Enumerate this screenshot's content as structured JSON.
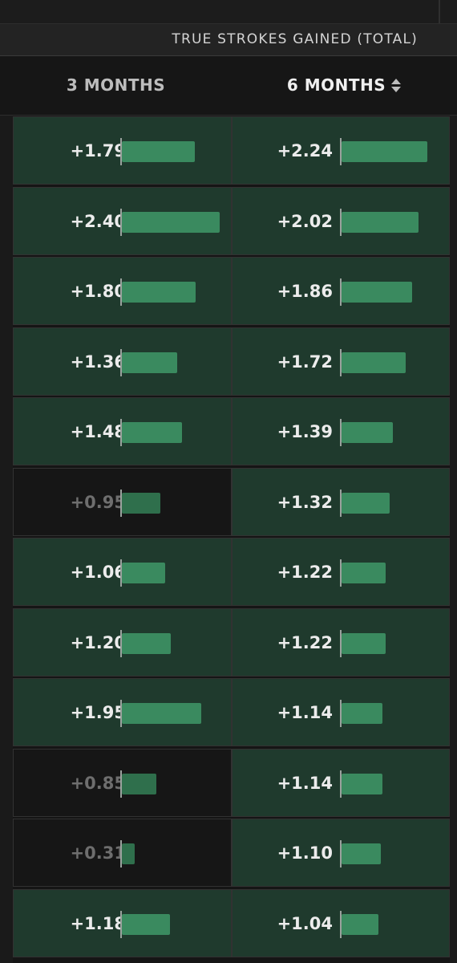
{
  "table": {
    "group_header": "TRUE STROKES GAINED (TOTAL)",
    "columns": [
      {
        "label": "3 MONTHS"
      },
      {
        "label": "6 MONTHS",
        "sorted": true
      }
    ],
    "rows": [
      {
        "m3": {
          "text": "+1.79",
          "value": 1.79
        },
        "m6": {
          "text": "+2.24",
          "value": 2.24
        }
      },
      {
        "m3": {
          "text": "+2.40",
          "value": 2.4
        },
        "m6": {
          "text": "+2.02",
          "value": 2.02
        }
      },
      {
        "m3": {
          "text": "+1.80",
          "value": 1.8
        },
        "m6": {
          "text": "+1.86",
          "value": 1.86
        }
      },
      {
        "m3": {
          "text": "+1.36",
          "value": 1.36
        },
        "m6": {
          "text": "+1.72",
          "value": 1.72
        }
      },
      {
        "m3": {
          "text": "+1.48",
          "value": 1.48
        },
        "m6": {
          "text": "+1.39",
          "value": 1.39
        }
      },
      {
        "m3": {
          "text": "+0.95",
          "value": 0.95
        },
        "m6": {
          "text": "+1.32",
          "value": 1.32
        }
      },
      {
        "m3": {
          "text": "+1.06",
          "value": 1.06
        },
        "m6": {
          "text": "+1.22",
          "value": 1.22
        }
      },
      {
        "m3": {
          "text": "+1.20",
          "value": 1.2
        },
        "m6": {
          "text": "+1.22",
          "value": 1.22
        }
      },
      {
        "m3": {
          "text": "+1.95",
          "value": 1.95
        },
        "m6": {
          "text": "+1.14",
          "value": 1.14
        }
      },
      {
        "m3": {
          "text": "+0.85",
          "value": 0.85
        },
        "m6": {
          "text": "+1.14",
          "value": 1.14
        }
      },
      {
        "m3": {
          "text": "+0.31",
          "value": 0.31
        },
        "m6": {
          "text": "+1.10",
          "value": 1.1
        }
      },
      {
        "m3": {
          "text": "+1.18",
          "value": 1.18
        },
        "m6": {
          "text": "+1.04",
          "value": 1.04
        }
      }
    ]
  },
  "colors": {
    "positive_cell": "#1f3a2d",
    "low_cell": "#161616",
    "bar": "#3a8a5f",
    "low_bar": "#2f6f4c",
    "low_text": "#6e6e6e"
  }
}
